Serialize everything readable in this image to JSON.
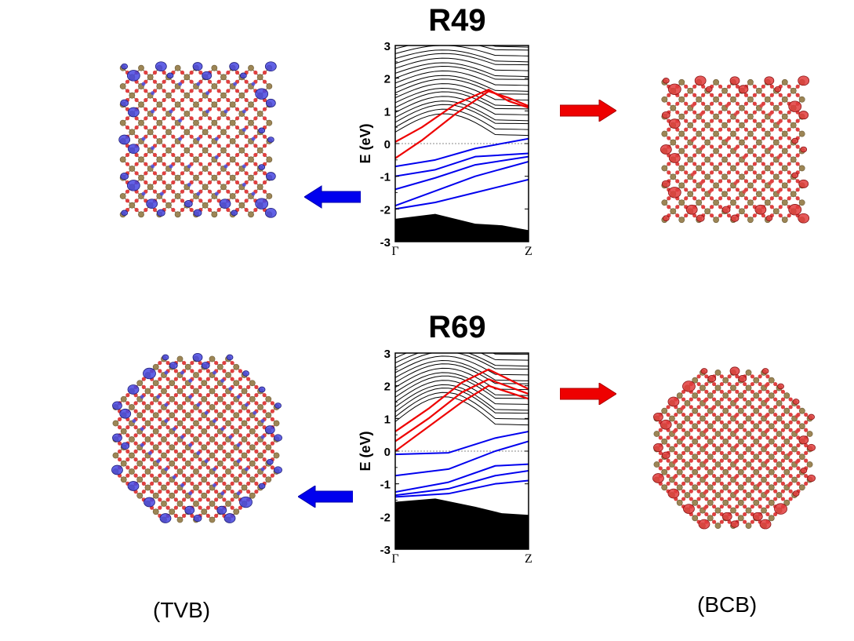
{
  "panels": [
    {
      "title": "R49",
      "ylabel": "E (eV)",
      "yticks": [
        "3",
        "2",
        "1",
        "0",
        "-1",
        "-2",
        "-3"
      ],
      "xticks": [
        "Γ",
        "Z"
      ],
      "ylim": [
        -3,
        3
      ]
    },
    {
      "title": "R69",
      "ylabel": "E (eV)",
      "yticks": [
        "3",
        "2",
        "1",
        "0",
        "-1",
        "-2",
        "-3"
      ],
      "xticks": [
        "Γ",
        "Z"
      ],
      "ylim": [
        -3,
        3
      ]
    }
  ],
  "captions": {
    "left": "(TVB)",
    "right": "(BCB)"
  },
  "colors": {
    "valence": "#0000ee",
    "conduction": "#ee0000",
    "bulk": "#000000",
    "arrow_blue": "#0000ee",
    "arrow_red": "#ee0000",
    "atom_si": "#9c8555",
    "atom_o": "#e04040"
  },
  "chart_data": [
    {
      "type": "line",
      "title": "R49",
      "ylabel": "E (eV)",
      "ylim": [
        -3,
        3
      ],
      "x_labels": [
        "Γ",
        "Z"
      ],
      "fermi_level": 0,
      "series": [
        {
          "band": "conduction",
          "x": [
            0,
            0.2,
            0.45,
            0.7,
            0.85,
            1
          ],
          "y": [
            0.05,
            0.5,
            1.2,
            1.65,
            1.3,
            1.1
          ]
        },
        {
          "band": "conduction",
          "x": [
            0,
            0.2,
            0.45,
            0.7,
            0.85,
            1
          ],
          "y": [
            -0.45,
            0.1,
            0.9,
            1.6,
            1.4,
            1.15
          ]
        },
        {
          "band": "valence",
          "x": [
            0,
            0.3,
            0.6,
            1
          ],
          "y": [
            -0.7,
            -0.5,
            -0.15,
            0.15
          ]
        },
        {
          "band": "valence",
          "x": [
            0,
            0.3,
            0.6,
            1
          ],
          "y": [
            -1.0,
            -0.8,
            -0.4,
            -0.3
          ]
        },
        {
          "band": "valence",
          "x": [
            0,
            0.3,
            0.6,
            1
          ],
          "y": [
            -1.4,
            -1.05,
            -0.65,
            -0.4
          ]
        },
        {
          "band": "valence",
          "x": [
            0,
            0.3,
            0.6,
            1
          ],
          "y": [
            -1.9,
            -1.45,
            -1.0,
            -0.55
          ]
        },
        {
          "band": "valence",
          "x": [
            0,
            0.3,
            0.6,
            1
          ],
          "y": [
            -2.0,
            -1.8,
            -1.5,
            -1.1
          ]
        }
      ]
    },
    {
      "type": "line",
      "title": "R69",
      "ylabel": "E (eV)",
      "ylim": [
        -3,
        3
      ],
      "x_labels": [
        "Γ",
        "Z"
      ],
      "fermi_level": 0,
      "series": [
        {
          "band": "conduction",
          "x": [
            0,
            0.25,
            0.5,
            0.7,
            1
          ],
          "y": [
            0.6,
            1.3,
            2.1,
            2.5,
            1.9
          ]
        },
        {
          "band": "conduction",
          "x": [
            0,
            0.25,
            0.5,
            0.7,
            1
          ],
          "y": [
            0.3,
            1.0,
            1.8,
            2.2,
            1.75
          ]
        },
        {
          "band": "conduction",
          "x": [
            0,
            0.25,
            0.5,
            0.7,
            1
          ],
          "y": [
            0.0,
            0.75,
            1.5,
            2.0,
            1.6
          ]
        },
        {
          "band": "valence",
          "x": [
            0,
            0.4,
            0.75,
            1
          ],
          "y": [
            -0.1,
            -0.05,
            0.4,
            0.6
          ]
        },
        {
          "band": "valence",
          "x": [
            0,
            0.4,
            0.75,
            1
          ],
          "y": [
            -0.75,
            -0.55,
            0.0,
            0.3
          ]
        },
        {
          "band": "valence",
          "x": [
            0,
            0.4,
            0.75,
            1
          ],
          "y": [
            -1.25,
            -0.95,
            -0.45,
            -0.4
          ]
        },
        {
          "band": "valence",
          "x": [
            0,
            0.4,
            0.75,
            1
          ],
          "y": [
            -1.35,
            -1.15,
            -0.75,
            -0.6
          ]
        },
        {
          "band": "valence",
          "x": [
            0,
            0.4,
            0.75,
            1
          ],
          "y": [
            -1.4,
            -1.3,
            -1.0,
            -0.9
          ]
        }
      ]
    }
  ]
}
